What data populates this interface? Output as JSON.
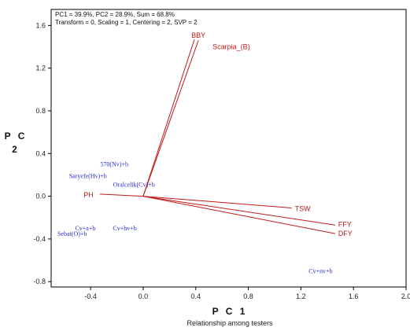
{
  "header": {
    "line1": "PC1 = 39.9%, PC2 = 28.9%, Sum = 68.8%",
    "line2": "Transform = 0, Scaling = 1, Centering = 2, SVP = 2"
  },
  "caption": "Relationship among testers",
  "chart_data": {
    "type": "scatter",
    "subtype": "biplot",
    "xlabel": "P C 1",
    "ylabel": "P C 2",
    "xlim": [
      -0.7,
      2.0
    ],
    "ylim": [
      -0.85,
      1.75
    ],
    "xticks": [
      -0.4,
      0.0,
      0.4,
      0.8,
      1.2,
      1.6,
      2.0
    ],
    "yticks": [
      -0.8,
      -0.4,
      0.0,
      0.4,
      0.8,
      1.2,
      1.6
    ],
    "xtick_labels": [
      "-0.4",
      "0.0",
      "0.4",
      "0.8",
      "1.2",
      "1.6",
      "2.0"
    ],
    "ytick_labels": [
      "-0.8",
      "-0.4",
      "0.0",
      "0.4",
      "0.8",
      "1.2",
      "1.6"
    ],
    "grid": false,
    "colors": {
      "testers": "#2a2ad0",
      "traits": "#c01818"
    },
    "traits": [
      {
        "name": "BBY",
        "x": 0.39,
        "y": 1.47
      },
      {
        "name": "Scarpia_(B)",
        "x": 0.42,
        "y": 1.46
      },
      {
        "name": "PH",
        "x": -0.33,
        "y": 0.02
      },
      {
        "name": "TSW",
        "x": 1.13,
        "y": -0.11
      },
      {
        "name": "FFY",
        "x": 1.46,
        "y": -0.27
      },
      {
        "name": "DFY",
        "x": 1.46,
        "y": -0.35
      }
    ],
    "testers": [
      {
        "name": "570(Nv)+b",
        "x": -0.22,
        "y": 0.28
      },
      {
        "name": "Saryefe(Hv)+b",
        "x": -0.42,
        "y": 0.17
      },
      {
        "name": "Oralcelik(Cv)+b",
        "x": -0.07,
        "y": 0.09
      },
      {
        "name": "Cv+a+b",
        "x": -0.44,
        "y": -0.32
      },
      {
        "name": "Cv+hv+b",
        "x": -0.14,
        "y": -0.32
      },
      {
        "name": "Sebat(O)+b",
        "x": -0.54,
        "y": -0.37
      },
      {
        "name": "Cv+nv+b",
        "x": 1.35,
        "y": -0.72
      }
    ]
  }
}
